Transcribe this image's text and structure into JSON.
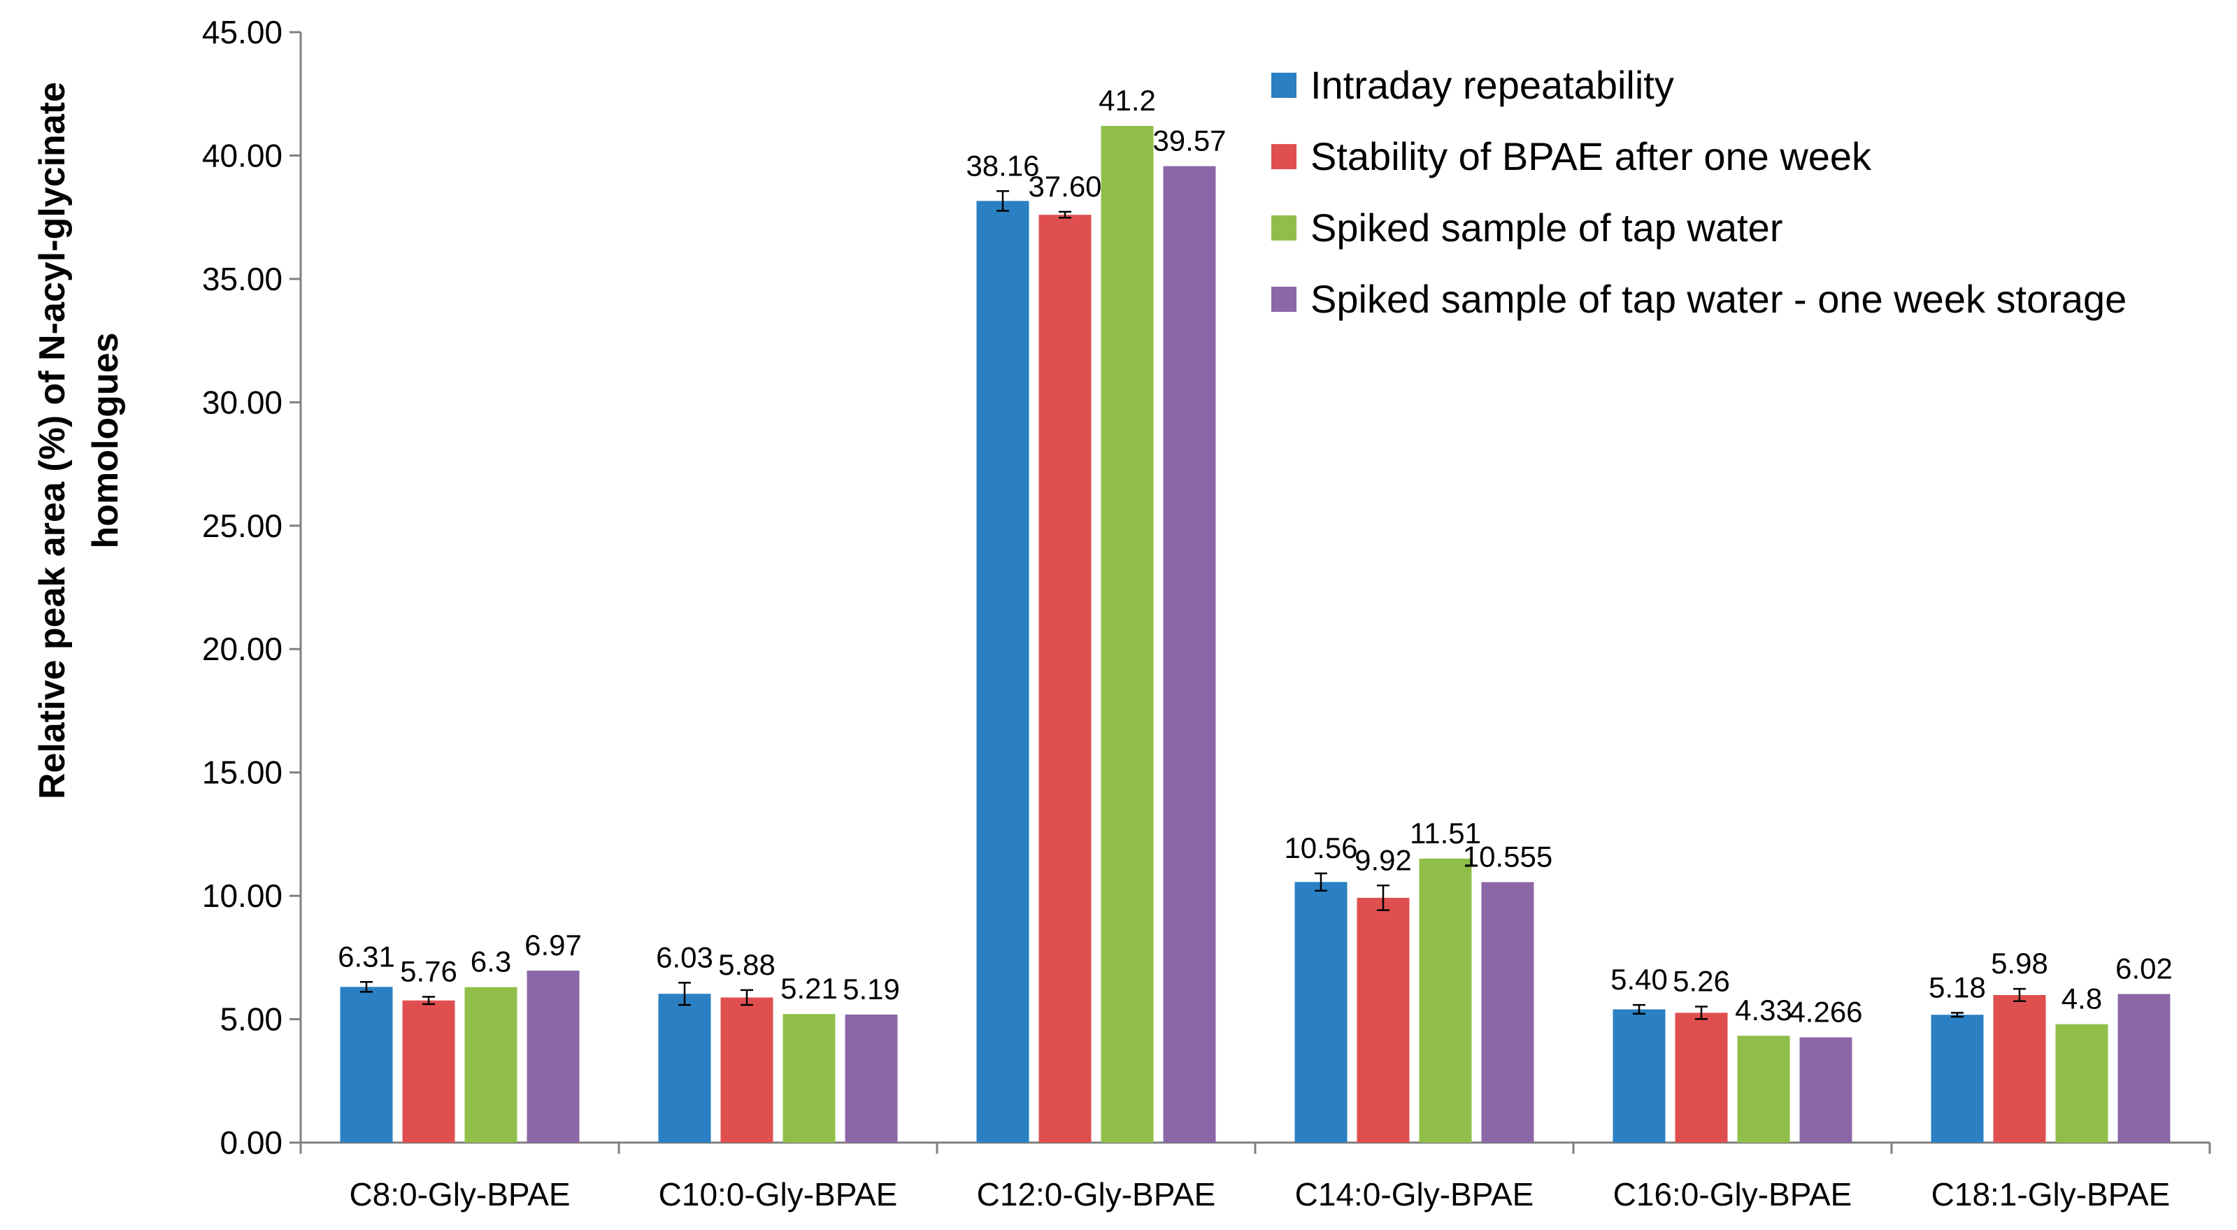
{
  "chart_data": {
    "type": "bar",
    "title": "",
    "xlabel": "",
    "ylabel": "Relative peak area (%) of N-acyl-glycinate homologues",
    "ylabel_lines": [
      "Relative peak area (%) of N-acyl-glycinate",
      "homologues"
    ],
    "ylim": [
      0,
      45
    ],
    "yticks": [
      0,
      5,
      10,
      15,
      20,
      25,
      30,
      35,
      40,
      45
    ],
    "ytick_labels": [
      "0.00",
      "5.00",
      "10.00",
      "15.00",
      "20.00",
      "25.00",
      "30.00",
      "35.00",
      "40.00",
      "45.00"
    ],
    "grid": false,
    "legend_position": "top-right",
    "categories": [
      "C8:0-Gly-BPAE",
      "C10:0-Gly-BPAE",
      "C12:0-Gly-BPAE",
      "C14:0-Gly-BPAE",
      "C16:0-Gly-BPAE",
      "C18:1-Gly-BPAE"
    ],
    "series": [
      {
        "name": "Intraday repeatability",
        "color": "#2a80c2",
        "values": [
          6.31,
          6.03,
          38.16,
          10.56,
          5.4,
          5.18
        ],
        "labels": [
          "6.31",
          "6.03",
          "38.16",
          "10.56",
          "5.40",
          "5.18"
        ],
        "errors": [
          0.2,
          0.45,
          0.4,
          0.35,
          0.18,
          0.08
        ]
      },
      {
        "name": "Stability of BPAE after one week",
        "color": "#e04f4f",
        "values": [
          5.76,
          5.88,
          37.6,
          9.92,
          5.26,
          5.98
        ],
        "labels": [
          "5.76",
          "5.88",
          "37.60",
          "9.92",
          "5.26",
          "5.98"
        ],
        "errors": [
          0.15,
          0.3,
          0.12,
          0.5,
          0.25,
          0.25
        ]
      },
      {
        "name": "Spiked sample of tap water",
        "color": "#8fbf4a",
        "values": [
          6.3,
          5.21,
          41.2,
          11.51,
          4.33,
          4.8
        ],
        "labels": [
          "6.3",
          "5.21",
          "41.2",
          "11.51",
          "4.33",
          "4.8"
        ],
        "errors": null
      },
      {
        "name": "Spiked sample of tap water - one week storage",
        "color": "#8c67a8",
        "values": [
          6.97,
          5.19,
          39.57,
          10.555,
          4.266,
          6.02
        ],
        "labels": [
          "6.97",
          "5.19",
          "39.57",
          "10.555",
          "4.266",
          "6.02"
        ],
        "errors": null
      }
    ]
  }
}
